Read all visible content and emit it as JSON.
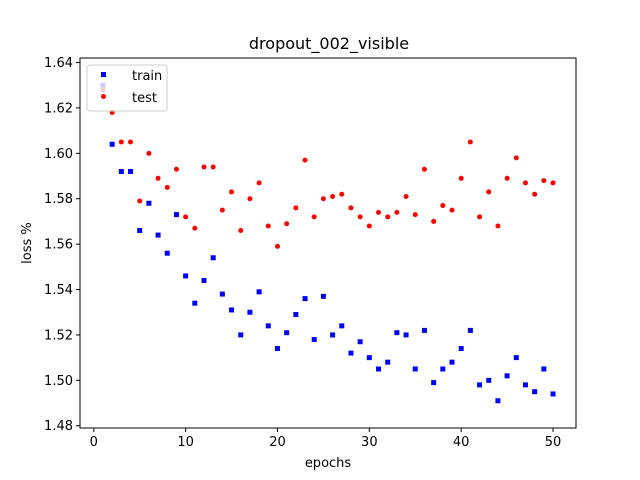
{
  "chart_data": {
    "type": "scatter",
    "title": "dropout_002_visible",
    "xlabel": "epochs",
    "ylabel": "loss %",
    "xlim": [
      -1.5,
      52.5
    ],
    "ylim": [
      1.479,
      1.642
    ],
    "xticks": [
      0,
      10,
      20,
      30,
      40,
      50
    ],
    "yticks": [
      1.48,
      1.5,
      1.52,
      1.54,
      1.56,
      1.58,
      1.6,
      1.62,
      1.64
    ],
    "legend_position": "top-left",
    "grid": false,
    "series": [
      {
        "name": "train",
        "marker": "square",
        "color": "#0000ff",
        "x": [
          1,
          2,
          3,
          4,
          5,
          6,
          7,
          8,
          9,
          10,
          11,
          12,
          13,
          14,
          15,
          16,
          17,
          18,
          19,
          20,
          21,
          22,
          23,
          24,
          25,
          26,
          27,
          28,
          29,
          30,
          31,
          32,
          33,
          34,
          35,
          36,
          37,
          38,
          39,
          40,
          41,
          42,
          43,
          44,
          45,
          46,
          47,
          48,
          49,
          50
        ],
        "y": [
          1.63,
          1.604,
          1.592,
          1.592,
          1.566,
          1.578,
          1.564,
          1.556,
          1.573,
          1.546,
          1.534,
          1.544,
          1.554,
          1.538,
          1.531,
          1.52,
          1.53,
          1.539,
          1.524,
          1.514,
          1.521,
          1.529,
          1.536,
          1.518,
          1.537,
          1.52,
          1.524,
          1.512,
          1.517,
          1.51,
          1.505,
          1.508,
          1.521,
          1.52,
          1.505,
          1.522,
          1.499,
          1.505,
          1.508,
          1.514,
          1.522,
          1.498,
          1.5,
          1.491,
          1.502,
          1.51,
          1.498,
          1.495,
          1.505,
          1.494
        ]
      },
      {
        "name": "test",
        "marker": "circle",
        "color": "#ff0000",
        "x": [
          1,
          2,
          3,
          4,
          5,
          6,
          7,
          8,
          9,
          10,
          11,
          12,
          13,
          14,
          15,
          16,
          17,
          18,
          19,
          20,
          21,
          22,
          23,
          24,
          25,
          26,
          27,
          28,
          29,
          30,
          31,
          32,
          33,
          34,
          35,
          36,
          37,
          38,
          39,
          40,
          41,
          42,
          43,
          44,
          45,
          46,
          47,
          48,
          49,
          50
        ],
        "y": [
          1.628,
          1.618,
          1.605,
          1.605,
          1.579,
          1.6,
          1.589,
          1.585,
          1.593,
          1.572,
          1.567,
          1.594,
          1.594,
          1.575,
          1.583,
          1.566,
          1.58,
          1.587,
          1.568,
          1.559,
          1.569,
          1.576,
          1.597,
          1.572,
          1.58,
          1.581,
          1.582,
          1.576,
          1.572,
          1.568,
          1.574,
          1.572,
          1.574,
          1.581,
          1.573,
          1.593,
          1.57,
          1.577,
          1.575,
          1.589,
          1.605,
          1.572,
          1.583,
          1.568,
          1.589,
          1.598,
          1.587,
          1.582,
          1.588,
          1.587
        ]
      }
    ]
  }
}
